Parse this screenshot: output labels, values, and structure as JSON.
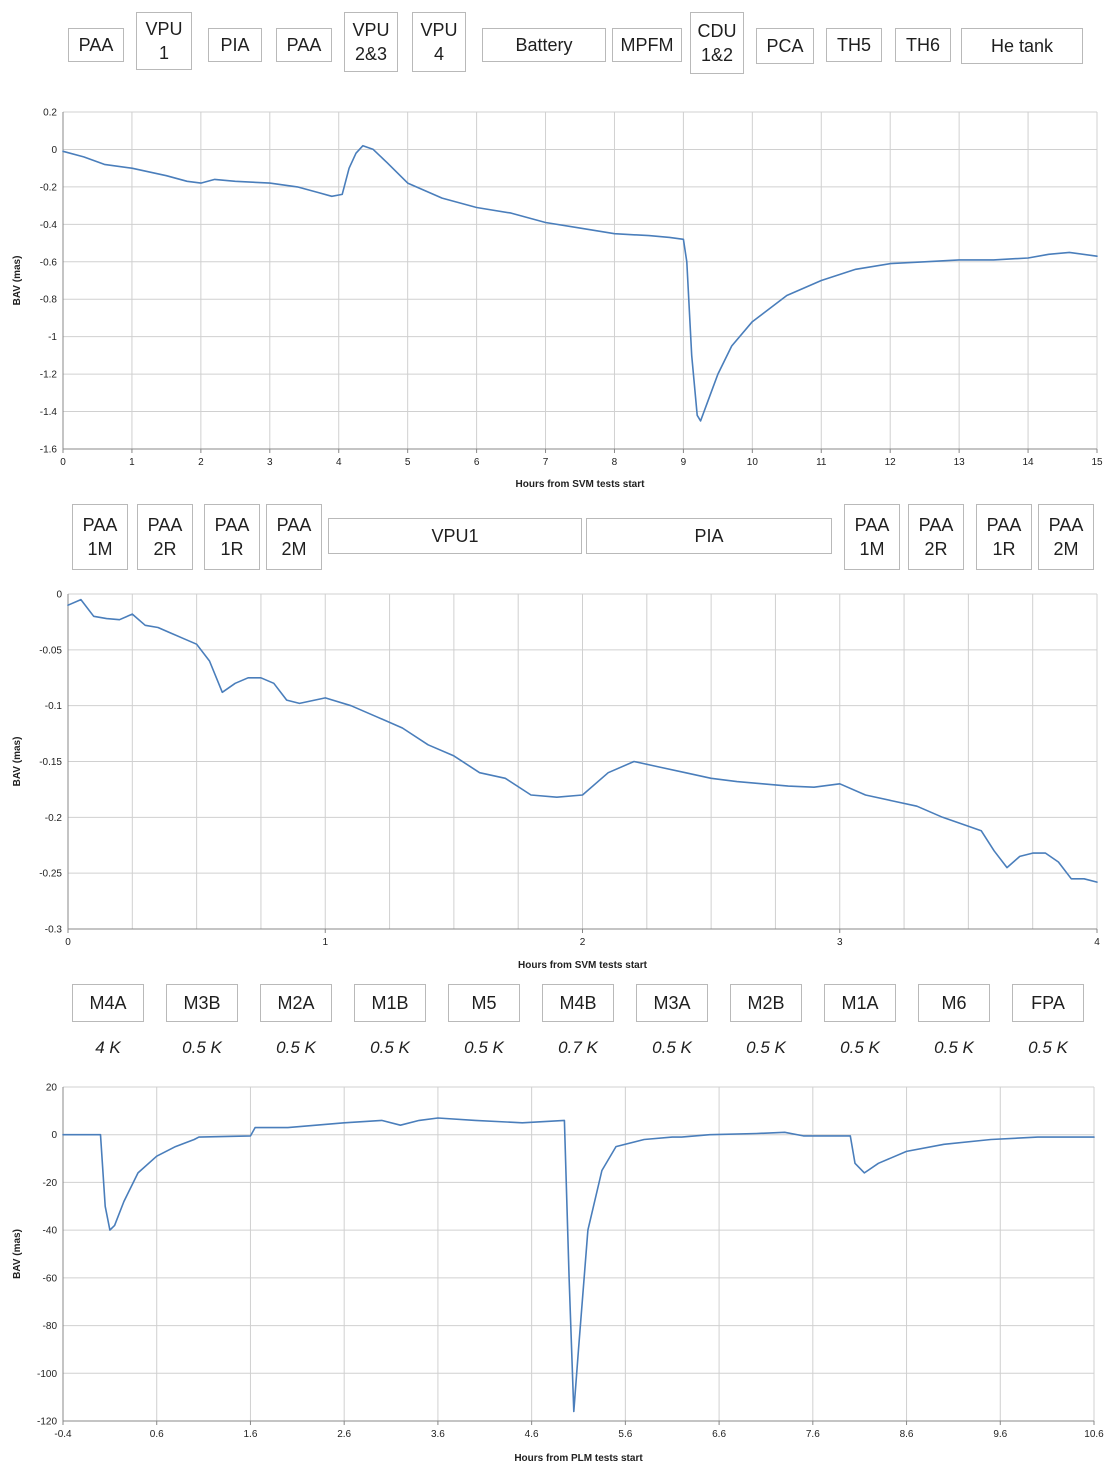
{
  "colors": {
    "series": "#4a7ebb",
    "grid": "#d0d0d0",
    "axis": "#888888",
    "box_border": "#b9b9b9"
  },
  "panels": [
    {
      "id": "svm-hot",
      "labels": [
        {
          "lines": [
            "PAA"
          ]
        },
        {
          "lines": [
            "VPU",
            "1"
          ]
        },
        {
          "lines": [
            "PIA"
          ]
        },
        {
          "lines": [
            "PAA"
          ]
        },
        {
          "lines": [
            "VPU",
            "2&3"
          ]
        },
        {
          "lines": [
            "VPU",
            "4"
          ]
        },
        {
          "lines": [
            "Battery"
          ]
        },
        {
          "lines": [
            "MPFM"
          ]
        },
        {
          "lines": [
            "CDU",
            "1&2"
          ]
        },
        {
          "lines": [
            "PCA"
          ]
        },
        {
          "lines": [
            "TH5"
          ]
        },
        {
          "lines": [
            "TH6"
          ]
        },
        {
          "lines": [
            "He tank"
          ]
        }
      ]
    },
    {
      "id": "svm-cold",
      "labels": [
        {
          "lines": [
            "PAA",
            "1M"
          ]
        },
        {
          "lines": [
            "PAA",
            "2R"
          ]
        },
        {
          "lines": [
            "PAA",
            "1R"
          ]
        },
        {
          "lines": [
            "PAA",
            "2M"
          ]
        },
        {
          "lines": [
            "VPU1"
          ]
        },
        {
          "lines": [
            "PIA"
          ]
        },
        {
          "lines": [
            "PAA",
            "1M"
          ]
        },
        {
          "lines": [
            "PAA",
            "2R"
          ]
        },
        {
          "lines": [
            "PAA",
            "1R"
          ]
        },
        {
          "lines": [
            "PAA",
            "2M"
          ]
        }
      ]
    },
    {
      "id": "plm",
      "labels": [
        {
          "lines": [
            "M4A"
          ],
          "temp": "4 K"
        },
        {
          "lines": [
            "M3B"
          ],
          "temp": "0.5 K"
        },
        {
          "lines": [
            "M2A"
          ],
          "temp": "0.5 K"
        },
        {
          "lines": [
            "M1B"
          ],
          "temp": "0.5 K"
        },
        {
          "lines": [
            "M5"
          ],
          "temp": "0.5 K"
        },
        {
          "lines": [
            "M4B"
          ],
          "temp": "0.7 K"
        },
        {
          "lines": [
            "M3A"
          ],
          "temp": "0.5 K"
        },
        {
          "lines": [
            "M2B"
          ],
          "temp": "0.5 K"
        },
        {
          "lines": [
            "M1A"
          ],
          "temp": "0.5 K"
        },
        {
          "lines": [
            "M6"
          ],
          "temp": "0.5 K"
        },
        {
          "lines": [
            "FPA"
          ],
          "temp": "0.5 K"
        }
      ]
    }
  ],
  "chart_data": [
    {
      "type": "line",
      "xlabel": "Hours from SVM tests start",
      "ylabel": "BAV (mas)",
      "xlim": [
        0,
        15
      ],
      "ylim": [
        -1.6,
        0.2
      ],
      "x_ticks": [
        "0",
        "1",
        "2",
        "3",
        "4",
        "5",
        "6",
        "7",
        "8",
        "9",
        "10",
        "11",
        "12",
        "13",
        "14",
        "15"
      ],
      "y_ticks": [
        "0.2",
        "0",
        "-0.2",
        "-0.4",
        "-0.6",
        "-0.8",
        "-1",
        "-1.2",
        "-1.4",
        "-1.6"
      ],
      "grid": true,
      "vlines_x": [
        1,
        2,
        3,
        4,
        5,
        6,
        7,
        8,
        9,
        10,
        11,
        12,
        13,
        14,
        15
      ],
      "series": [
        {
          "x": [
            0,
            0.3,
            0.6,
            1.0,
            1.5,
            1.8,
            2.0,
            2.2,
            2.5,
            3.0,
            3.4,
            3.7,
            3.9,
            4.05,
            4.15,
            4.25,
            4.35,
            4.5,
            4.7,
            5.0,
            5.5,
            6.0,
            6.5,
            7.0,
            7.5,
            8.0,
            8.5,
            8.8,
            9.0,
            9.05,
            9.12,
            9.2,
            9.25,
            9.35,
            9.5,
            9.7,
            10.0,
            10.5,
            11.0,
            11.5,
            12.0,
            12.5,
            13.0,
            13.5,
            14.0,
            14.3,
            14.6,
            15.0
          ],
          "y": [
            -0.01,
            -0.04,
            -0.08,
            -0.1,
            -0.14,
            -0.17,
            -0.18,
            -0.16,
            -0.17,
            -0.18,
            -0.2,
            -0.23,
            -0.25,
            -0.24,
            -0.1,
            -0.02,
            0.02,
            0.0,
            -0.07,
            -0.18,
            -0.26,
            -0.31,
            -0.34,
            -0.39,
            -0.42,
            -0.45,
            -0.46,
            -0.47,
            -0.48,
            -0.6,
            -1.1,
            -1.42,
            -1.45,
            -1.35,
            -1.2,
            -1.05,
            -0.92,
            -0.78,
            -0.7,
            -0.64,
            -0.61,
            -0.6,
            -0.59,
            -0.59,
            -0.58,
            -0.56,
            -0.55,
            -0.57
          ]
        }
      ]
    },
    {
      "type": "line",
      "xlabel": "Hours from SVM tests start",
      "ylabel": "BAV (mas)",
      "xlim": [
        0,
        4
      ],
      "ylim": [
        -0.3,
        0
      ],
      "x_ticks": [
        "0",
        "1",
        "2",
        "3",
        "4"
      ],
      "y_ticks": [
        "0",
        "-0.05",
        "-0.1",
        "-0.15",
        "-0.2",
        "-0.25",
        "-0.3"
      ],
      "grid": true,
      "vlines_x": [
        0.25,
        0.5,
        0.75,
        1.0,
        1.25,
        1.5,
        1.75,
        2.0,
        2.25,
        2.5,
        2.75,
        3.0,
        3.25,
        3.5,
        3.75,
        4.0
      ],
      "series": [
        {
          "x": [
            0,
            0.05,
            0.1,
            0.15,
            0.2,
            0.25,
            0.3,
            0.35,
            0.4,
            0.45,
            0.5,
            0.55,
            0.6,
            0.65,
            0.7,
            0.75,
            0.8,
            0.85,
            0.9,
            1.0,
            1.1,
            1.2,
            1.3,
            1.4,
            1.5,
            1.6,
            1.7,
            1.8,
            1.9,
            2.0,
            2.1,
            2.2,
            2.3,
            2.4,
            2.5,
            2.6,
            2.7,
            2.8,
            2.9,
            3.0,
            3.1,
            3.2,
            3.3,
            3.4,
            3.5,
            3.55,
            3.6,
            3.65,
            3.7,
            3.75,
            3.8,
            3.85,
            3.9,
            3.95,
            4.0
          ],
          "y": [
            -0.01,
            -0.005,
            -0.02,
            -0.022,
            -0.023,
            -0.018,
            -0.028,
            -0.03,
            -0.035,
            -0.04,
            -0.045,
            -0.06,
            -0.088,
            -0.08,
            -0.075,
            -0.075,
            -0.08,
            -0.095,
            -0.098,
            -0.093,
            -0.1,
            -0.11,
            -0.12,
            -0.135,
            -0.145,
            -0.16,
            -0.165,
            -0.18,
            -0.182,
            -0.18,
            -0.16,
            -0.15,
            -0.155,
            -0.16,
            -0.165,
            -0.168,
            -0.17,
            -0.172,
            -0.173,
            -0.17,
            -0.18,
            -0.185,
            -0.19,
            -0.2,
            -0.208,
            -0.212,
            -0.23,
            -0.245,
            -0.235,
            -0.232,
            -0.232,
            -0.24,
            -0.255,
            -0.255,
            -0.258
          ]
        }
      ]
    },
    {
      "type": "line",
      "xlabel": "Hours from PLM tests start",
      "ylabel": "BAV (mas)",
      "xlim": [
        -0.4,
        10.6
      ],
      "ylim": [
        -120,
        20
      ],
      "x_ticks": [
        "-0.4",
        "0.6",
        "1.6",
        "2.6",
        "3.6",
        "4.6",
        "5.6",
        "6.6",
        "7.6",
        "8.6",
        "9.6",
        "10.6"
      ],
      "y_ticks": [
        "20",
        "0",
        "-20",
        "-40",
        "-60",
        "-80",
        "-100",
        "-120"
      ],
      "grid": true,
      "vlines_x": [
        0.6,
        1.6,
        2.6,
        3.6,
        4.6,
        5.6,
        6.6,
        7.6,
        8.6,
        9.6,
        10.6
      ],
      "series": [
        {
          "x": [
            -0.4,
            0.0,
            0.05,
            0.1,
            0.15,
            0.25,
            0.4,
            0.6,
            0.8,
            1.0,
            1.05,
            1.6,
            1.65,
            2.0,
            2.6,
            3.0,
            3.2,
            3.4,
            3.6,
            4.0,
            4.5,
            4.95,
            5.0,
            5.05,
            5.1,
            5.2,
            5.35,
            5.5,
            5.8,
            6.1,
            6.2,
            6.5,
            7.0,
            7.3,
            7.5,
            8.0,
            8.05,
            8.15,
            8.3,
            8.6,
            9.0,
            9.5,
            10.0,
            10.6
          ],
          "y": [
            0,
            0,
            -30,
            -40,
            -38,
            -28,
            -16,
            -9,
            -5,
            -2,
            -1,
            -0.5,
            3,
            3,
            5,
            6,
            4,
            6,
            7,
            6,
            5,
            6,
            -60,
            -116,
            -90,
            -40,
            -15,
            -5,
            -2,
            -1,
            -1,
            0,
            0.5,
            1,
            -0.5,
            -0.5,
            -12,
            -16,
            -12,
            -7,
            -4,
            -2,
            -1,
            -1
          ]
        }
      ]
    }
  ]
}
